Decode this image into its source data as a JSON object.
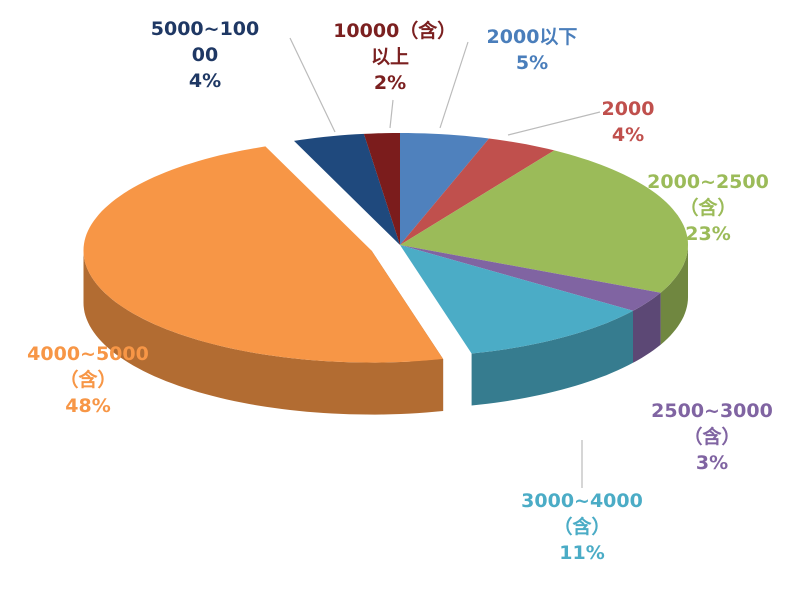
{
  "chart_data": {
    "type": "pie",
    "categories": [
      "2000以下",
      "2000",
      "2000~2500（含）",
      "2500~3000（含）",
      "3000~4000（含）",
      "4000~5000（含）",
      "5000~10000",
      "10000（含）以上"
    ],
    "values": [
      5,
      4,
      23,
      3,
      11,
      48,
      4,
      2
    ],
    "value_labels": [
      "5%",
      "4%",
      "23%",
      "3%",
      "11%",
      "48%",
      "4%",
      "2%"
    ],
    "colors": [
      "#4f81bd",
      "#c0504d",
      "#9bbb59",
      "#8064a2",
      "#4bacc6",
      "#f79646",
      "#1f497d",
      "#7b1c1c"
    ],
    "label_colors": [
      "#4a7ebb",
      "#c0504d",
      "#9bbb59",
      "#8064a2",
      "#4bacc6",
      "#f79646",
      "#1f3864",
      "#7b2020"
    ]
  }
}
